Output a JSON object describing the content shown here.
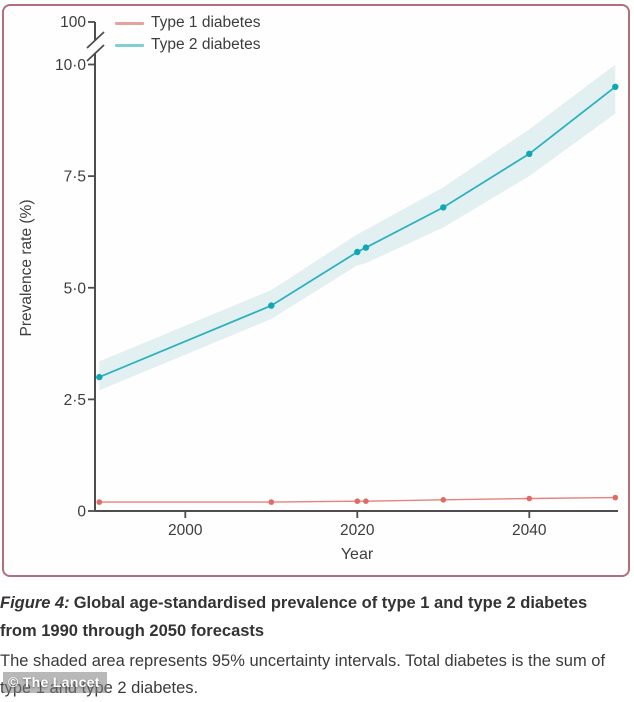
{
  "watermark": "© The Lancet",
  "caption": {
    "figure_label": "Figure 4:",
    "title": "Global age-standardised prevalence of type 1 and type 2 diabetes from 1990 through 2050 forecasts",
    "note": "The shaded area represents 95% uncertainty intervals. Total diabetes is the sum of type 1 and type 2 diabetes."
  },
  "colors": {
    "card_border": "#b26e7d",
    "axis": "#4d4d4d",
    "tick_text": "#3d3d3d",
    "type1_line": "#e5837c",
    "type1_dot": "#e16a62",
    "type2_line": "#2db1bd",
    "type2_dot": "#10a7b5",
    "uncertainty_band": "#e3f0f2",
    "legend_type1": "#e5a19b",
    "legend_type2": "#82ced6"
  },
  "chart_data": {
    "type": "line",
    "x": [
      1990,
      2010,
      2020,
      2021,
      2030,
      2040,
      2050
    ],
    "series": [
      {
        "name": "Type 1 diabetes",
        "values": [
          0.2,
          0.2,
          0.22,
          0.22,
          0.25,
          0.28,
          0.3
        ],
        "color": "#e5837c",
        "dot_color": "#e16a62",
        "legend_color": "#e5a19b"
      },
      {
        "name": "Type 2 diabetes",
        "values": [
          3.0,
          4.6,
          5.8,
          5.9,
          6.8,
          8.0,
          9.5
        ],
        "lower": [
          2.7,
          4.3,
          5.5,
          5.55,
          6.35,
          7.5,
          8.9
        ],
        "upper": [
          3.35,
          4.95,
          6.2,
          6.3,
          7.25,
          8.55,
          10.0
        ],
        "color": "#2db1bd",
        "dot_color": "#10a7b5",
        "band_color": "#e3f0f2",
        "legend_color": "#82ced6"
      }
    ],
    "title": "",
    "xlabel": "Year",
    "ylabel": "Prevalence rate (%)",
    "xlim": [
      1990,
      2050
    ],
    "ylim": [
      0,
      10
    ],
    "y_axis_break": {
      "top_label": "100"
    },
    "y_ticks": [
      {
        "value": 0,
        "label": "0"
      },
      {
        "value": 2.5,
        "label": "2·5"
      },
      {
        "value": 5,
        "label": "5·0"
      },
      {
        "value": 7.5,
        "label": "7·5"
      },
      {
        "value": 10,
        "label": "10·0"
      }
    ],
    "x_ticks": [
      {
        "value": 2000,
        "label": "2000"
      },
      {
        "value": 2020,
        "label": "2020"
      },
      {
        "value": 2040,
        "label": "2040"
      }
    ],
    "grid": false,
    "legend_position": "top-left",
    "uncertainty_note": "95% uncertainty intervals"
  }
}
